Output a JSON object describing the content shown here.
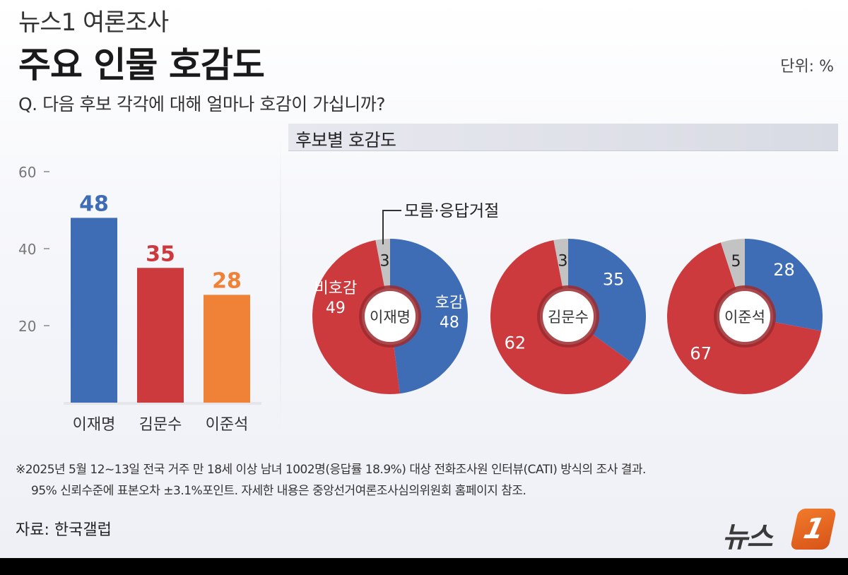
{
  "header": {
    "kicker": "뉴스1 여론조사",
    "title": "주요 인물 호감도",
    "unit": "단위: %",
    "question": "Q. 다음 후보 각각에 대해 얼마나 호감이 가십니까?"
  },
  "panel_title": "후보별 호감도",
  "chart_data": [
    {
      "type": "bar",
      "categories": [
        "이재명",
        "김문수",
        "이준석"
      ],
      "values": [
        48,
        35,
        28
      ],
      "colors": [
        "#3f6db5",
        "#cc3a3d",
        "#f08238"
      ],
      "yticks": [
        "20",
        "40",
        "60"
      ],
      "ylim": [
        0,
        60
      ]
    },
    {
      "type": "pie",
      "center_label": "이재명",
      "slices": [
        {
          "label": "호감",
          "value": 48,
          "color": "#3f6db5"
        },
        {
          "label": "비호감",
          "value": 49,
          "color": "#cc3a3d"
        },
        {
          "label": "모름·응답거절",
          "value": 3,
          "color": "#c3c3c3"
        }
      ]
    },
    {
      "type": "pie",
      "center_label": "김문수",
      "slices": [
        {
          "label": "",
          "value": 35,
          "color": "#3f6db5"
        },
        {
          "label": "",
          "value": 62,
          "color": "#cc3a3d"
        },
        {
          "label": "",
          "value": 3,
          "color": "#c3c3c3"
        }
      ]
    },
    {
      "type": "pie",
      "center_label": "이준석",
      "slices": [
        {
          "label": "",
          "value": 28,
          "color": "#3f6db5"
        },
        {
          "label": "",
          "value": 67,
          "color": "#cc3a3d"
        },
        {
          "label": "",
          "value": 5,
          "color": "#c3c3c3"
        }
      ]
    }
  ],
  "footnote": {
    "line1": "※2025년 5월 12~13일 전국 거주 만 18세 이상 남녀 1002명(응답률 18.9%) 대상 전화조사원 인터뷰(CATI) 방식의 조사 결과.",
    "line2": "95% 신뢰수준에 표본오차 ±3.1%포인트. 자세한 내용은 중앙선거여론조사심의위원회 홈페이지 참조."
  },
  "source": "자료: 한국갤럽",
  "logo": {
    "text": "뉴스",
    "badge": "1"
  }
}
